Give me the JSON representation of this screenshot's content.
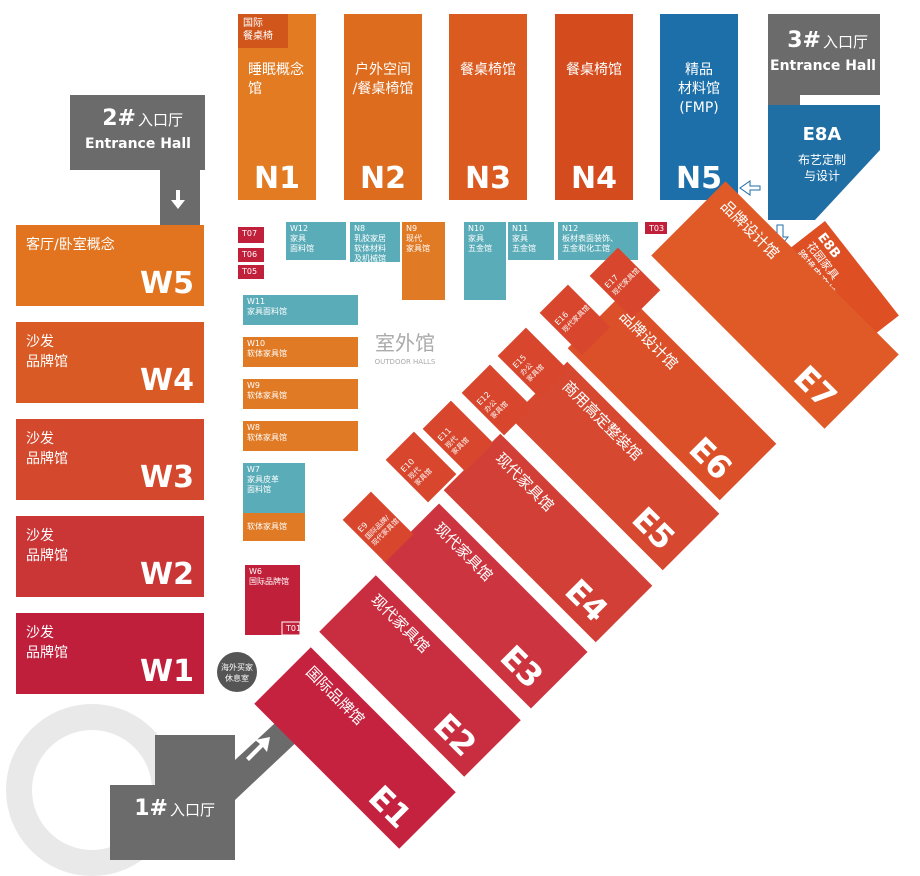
{
  "entrances": [
    {
      "number": "1#",
      "name": "入口厅",
      "en": "Entrance Hall"
    },
    {
      "number": "2#",
      "name": "入口厅",
      "en": "Entrance Hall"
    },
    {
      "number": "3#",
      "name": "入口厅",
      "en": "Entrance Hall"
    }
  ],
  "north_halls": [
    {
      "id": "N1",
      "name": [
        "睡眠概念",
        "馆"
      ],
      "tag": [
        "国际",
        "餐桌椅"
      ]
    },
    {
      "id": "N2",
      "name": [
        "户外空间",
        "/餐桌椅馆"
      ]
    },
    {
      "id": "N3",
      "name": [
        "餐桌椅馆"
      ]
    },
    {
      "id": "N4",
      "name": [
        "餐桌椅馆"
      ]
    },
    {
      "id": "N5",
      "name": [
        "精品",
        "材料馆",
        "(FMP)"
      ]
    }
  ],
  "e8_halls": [
    {
      "id": "E8A",
      "name": [
        "布艺定制",
        "与设计"
      ]
    },
    {
      "id": "E8B",
      "name": [
        "花园家具",
        "跨境电商馆"
      ]
    }
  ],
  "west_halls": [
    {
      "id": "W5",
      "name": [
        "客厅/卧室概念"
      ]
    },
    {
      "id": "W4",
      "name": [
        "沙发",
        "品牌馆"
      ]
    },
    {
      "id": "W3",
      "name": [
        "沙发",
        "品牌馆"
      ]
    },
    {
      "id": "W2",
      "name": [
        "沙发",
        "品牌馆"
      ]
    },
    {
      "id": "W1",
      "name": [
        "沙发",
        "品牌馆"
      ]
    }
  ],
  "small_halls": [
    {
      "id": "T07"
    },
    {
      "id": "T06"
    },
    {
      "id": "T05"
    },
    {
      "id": "W12",
      "name": [
        "家具",
        "面料馆"
      ]
    },
    {
      "id": "N8",
      "name": [
        "乳胶家居",
        "软体材料",
        "及机械馆"
      ]
    },
    {
      "id": "N9",
      "name": [
        "现代",
        "家具馆"
      ]
    },
    {
      "id": "N10",
      "name": [
        "家具",
        "五金馆"
      ]
    },
    {
      "id": "N11",
      "name": [
        "家具",
        "五金馆"
      ]
    },
    {
      "id": "N12",
      "name": [
        "板材表面装饰、",
        "五金和化工馆"
      ]
    },
    {
      "id": "T03"
    },
    {
      "id": "W11",
      "name": [
        "家具面料馆"
      ]
    },
    {
      "id": "W10",
      "name": [
        "软体家具馆"
      ]
    },
    {
      "id": "W9",
      "name": [
        "软体家具馆"
      ]
    },
    {
      "id": "W8",
      "name": [
        "软体家具馆"
      ]
    },
    {
      "id": "W7",
      "name": [
        "家具皮革",
        "面料馆"
      ]
    },
    {
      "name": [
        "软体家具馆"
      ]
    },
    {
      "id": "W6",
      "name": [
        "国际品牌馆"
      ]
    },
    {
      "id": "T01"
    }
  ],
  "east_halls": [
    {
      "id": "E1",
      "name": "国际品牌馆"
    },
    {
      "id": "E2",
      "name": "现代家具馆"
    },
    {
      "id": "E3",
      "name": "现代家具馆"
    },
    {
      "id": "E4",
      "name": "现代家具馆"
    },
    {
      "id": "E5",
      "name": "商用高定整装馆"
    },
    {
      "id": "E6",
      "name": "品牌设计馆"
    },
    {
      "id": "E7",
      "name": "品牌设计馆"
    }
  ],
  "east_small_halls": [
    {
      "id": "E9",
      "name": [
        "国际品牌/",
        "现代家具馆"
      ]
    },
    {
      "id": "E10",
      "name": [
        "现代",
        "家具馆"
      ]
    },
    {
      "id": "E11",
      "name": [
        "现代",
        "家具馆"
      ]
    },
    {
      "id": "E12",
      "name": [
        "办公",
        "家具馆"
      ]
    },
    {
      "id": "E15",
      "name": [
        "办公",
        "家具馆"
      ]
    },
    {
      "id": "E16",
      "name": [
        "现代家具馆"
      ]
    },
    {
      "id": "E17",
      "name": [
        "现代家具馆"
      ]
    }
  ],
  "outdoor": {
    "name": "室外馆",
    "en": "OUTDOOR HALLS"
  },
  "lounge": [
    "海外买家",
    "休息室"
  ]
}
